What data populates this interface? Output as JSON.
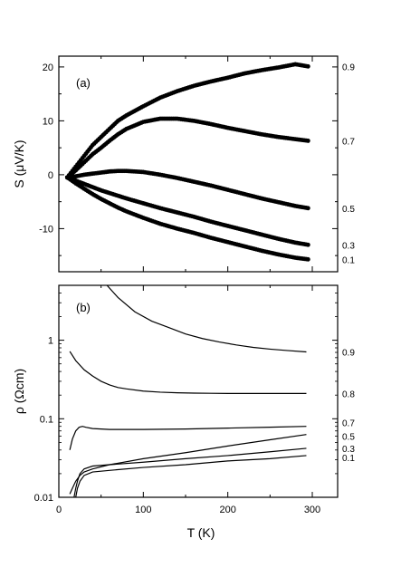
{
  "chart_data": [
    {
      "panel": "(a)",
      "type": "scatter",
      "title": "",
      "xlabel": "",
      "ylabel": "S (μV/K)",
      "xlim": [
        0,
        330
      ],
      "ylim": [
        -18,
        22
      ],
      "xticks": [
        0,
        100,
        200,
        300
      ],
      "show_x_tick_labels": false,
      "yticks": [
        -10,
        0,
        10,
        20
      ],
      "ytick_labels": [
        "-10",
        "0",
        "10",
        "20"
      ],
      "grid": false,
      "legend": "none",
      "marker_color": "#000000",
      "series": [
        {
          "label": "0.9",
          "x": [
            10,
            20,
            30,
            40,
            50,
            60,
            70,
            80,
            100,
            120,
            140,
            160,
            180,
            200,
            220,
            240,
            260,
            280,
            295
          ],
          "y": [
            -0.5,
            1.5,
            3.5,
            5.5,
            7.0,
            8.5,
            10.0,
            11.0,
            12.7,
            14.3,
            15.5,
            16.5,
            17.3,
            18.0,
            18.8,
            19.4,
            19.9,
            20.5,
            20.1
          ]
        },
        {
          "label": "0.7",
          "x": [
            10,
            20,
            30,
            40,
            50,
            60,
            70,
            80,
            100,
            120,
            140,
            160,
            180,
            200,
            220,
            240,
            260,
            280,
            295
          ],
          "y": [
            -0.5,
            0.8,
            2.3,
            3.8,
            5.0,
            6.3,
            7.5,
            8.5,
            9.8,
            10.4,
            10.4,
            10.0,
            9.4,
            8.7,
            8.1,
            7.5,
            7.0,
            6.6,
            6.3
          ]
        },
        {
          "label": "0.5",
          "x": [
            10,
            20,
            30,
            40,
            50,
            60,
            70,
            80,
            100,
            120,
            140,
            160,
            180,
            200,
            220,
            240,
            260,
            280,
            295
          ],
          "y": [
            -0.5,
            -0.3,
            0.0,
            0.2,
            0.4,
            0.6,
            0.7,
            0.7,
            0.5,
            0.0,
            -0.6,
            -1.3,
            -2.0,
            -2.8,
            -3.6,
            -4.4,
            -5.1,
            -5.8,
            -6.2
          ]
        },
        {
          "label": "0.3",
          "x": [
            10,
            20,
            30,
            40,
            50,
            60,
            70,
            80,
            100,
            120,
            140,
            160,
            180,
            200,
            220,
            240,
            260,
            280,
            295
          ],
          "y": [
            -0.5,
            -1.1,
            -1.7,
            -2.3,
            -2.9,
            -3.4,
            -3.9,
            -4.4,
            -5.3,
            -6.2,
            -7.0,
            -7.8,
            -8.7,
            -9.5,
            -10.3,
            -11.1,
            -11.9,
            -12.6,
            -13.0
          ]
        },
        {
          "label": "0.1",
          "x": [
            10,
            20,
            30,
            40,
            50,
            60,
            70,
            80,
            100,
            120,
            140,
            160,
            180,
            200,
            220,
            240,
            260,
            280,
            295
          ],
          "y": [
            -0.5,
            -1.6,
            -2.6,
            -3.6,
            -4.5,
            -5.3,
            -6.1,
            -6.8,
            -8.0,
            -9.1,
            -10.0,
            -10.8,
            -11.7,
            -12.5,
            -13.3,
            -14.1,
            -14.8,
            -15.4,
            -15.7
          ]
        }
      ]
    },
    {
      "panel": "(b)",
      "type": "line",
      "title": "",
      "xlabel": "T (K)",
      "ylabel": "ρ (Ωcm)",
      "xlim": [
        0,
        330
      ],
      "ylim": [
        0.01,
        5
      ],
      "yscale": "log",
      "xticks": [
        0,
        100,
        200,
        300
      ],
      "xtick_labels": [
        "0",
        "100",
        "200",
        "300"
      ],
      "yticks": [
        0.01,
        0.1,
        1
      ],
      "ytick_labels": [
        "0.01",
        "0.1",
        "1"
      ],
      "grid": false,
      "legend": "none",
      "line_color": "#000000",
      "series": [
        {
          "label": "0.9",
          "x": [
            57,
            70,
            90,
            110,
            130,
            150,
            170,
            190,
            210,
            230,
            250,
            270,
            293
          ],
          "y": [
            5.0,
            3.5,
            2.3,
            1.75,
            1.45,
            1.2,
            1.05,
            0.95,
            0.87,
            0.81,
            0.77,
            0.74,
            0.71
          ]
        },
        {
          "label": "0.8",
          "x": [
            13,
            20,
            30,
            40,
            50,
            60,
            70,
            80,
            100,
            120,
            140,
            160,
            180,
            200,
            220,
            240,
            260,
            280,
            293
          ],
          "y": [
            0.72,
            0.55,
            0.42,
            0.35,
            0.3,
            0.27,
            0.25,
            0.24,
            0.225,
            0.218,
            0.214,
            0.212,
            0.211,
            0.21,
            0.21,
            0.21,
            0.21,
            0.21,
            0.21
          ]
        },
        {
          "label": "0.7",
          "x": [
            13,
            16,
            20,
            24,
            28,
            32,
            40,
            60,
            100,
            150,
            200,
            250,
            293
          ],
          "y": [
            0.04,
            0.055,
            0.07,
            0.078,
            0.08,
            0.078,
            0.075,
            0.073,
            0.073,
            0.074,
            0.076,
            0.078,
            0.08
          ]
        },
        {
          "label": "0.5",
          "x": [
            13,
            16,
            20,
            25,
            30,
            40,
            60,
            100,
            150,
            200,
            250,
            293
          ],
          "y": [
            0.011,
            0.013,
            0.016,
            0.019,
            0.021,
            0.023,
            0.026,
            0.031,
            0.037,
            0.045,
            0.054,
            0.063
          ]
        },
        {
          "label": "0.3",
          "x": [
            18,
            20,
            22,
            25,
            30,
            40,
            60,
            100,
            150,
            200,
            250,
            293
          ],
          "y": [
            0.01,
            0.013,
            0.016,
            0.02,
            0.023,
            0.025,
            0.026,
            0.028,
            0.031,
            0.034,
            0.038,
            0.042
          ]
        },
        {
          "label": "0.1",
          "x": [
            20,
            22,
            25,
            30,
            40,
            60,
            100,
            150,
            200,
            250,
            293
          ],
          "y": [
            0.01,
            0.013,
            0.016,
            0.019,
            0.021,
            0.022,
            0.024,
            0.026,
            0.029,
            0.031,
            0.034
          ]
        }
      ]
    }
  ]
}
